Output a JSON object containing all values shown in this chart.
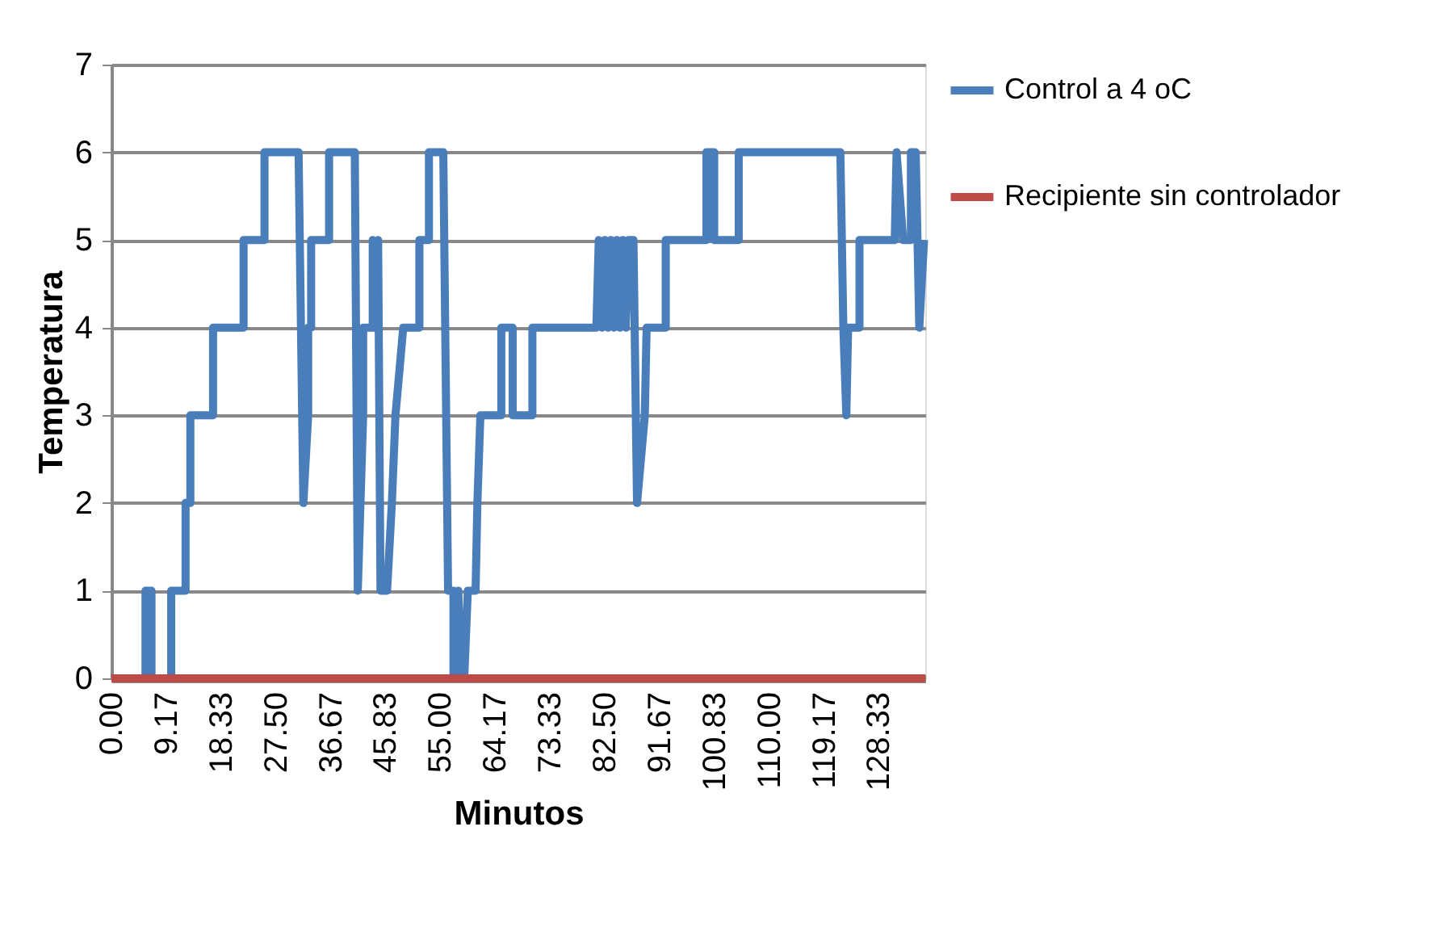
{
  "chart_data": {
    "type": "line",
    "xlabel": "Minutos",
    "ylabel": "Temperatura",
    "xlim": [
      0,
      136.1
    ],
    "ylim": [
      0,
      7
    ],
    "yticks": [
      0,
      1,
      2,
      3,
      4,
      5,
      6,
      7
    ],
    "xticks": [
      {
        "value": 0,
        "label": "0.00"
      },
      {
        "value": 9.17,
        "label": "9.17"
      },
      {
        "value": 18.33,
        "label": "18.33"
      },
      {
        "value": 27.5,
        "label": "27.50"
      },
      {
        "value": 36.67,
        "label": "36.67"
      },
      {
        "value": 45.83,
        "label": "45.83"
      },
      {
        "value": 55,
        "label": "55.00"
      },
      {
        "value": 64.17,
        "label": "64.17"
      },
      {
        "value": 73.33,
        "label": "73.33"
      },
      {
        "value": 82.5,
        "label": "82.50"
      },
      {
        "value": 91.67,
        "label": "91.67"
      },
      {
        "value": 100.83,
        "label": "100.83"
      },
      {
        "value": 110,
        "label": "110.00"
      },
      {
        "value": 119.17,
        "label": "119.17"
      },
      {
        "value": 128.33,
        "label": "128.33"
      }
    ],
    "grid": "y",
    "legend": "right",
    "marker": "none",
    "line_style": "solid",
    "series": [
      {
        "name": "Control a 4 oC",
        "color": "#4a7ebb",
        "x": [
          0,
          5.7,
          5.7,
          6.7,
          6.7,
          10.0,
          10.0,
          12.4,
          12.4,
          13.2,
          13.2,
          17.0,
          17.0,
          22.1,
          22.1,
          25.6,
          25.6,
          31.3,
          32.1,
          32.9,
          32.9,
          33.4,
          33.4,
          36.4,
          36.4,
          40.7,
          41.2,
          42.1,
          42.1,
          43.7,
          43.7,
          44.2,
          44.6,
          45.0,
          46.1,
          46.9,
          47.5,
          48.8,
          51.5,
          51.5,
          53.1,
          53.1,
          55.5,
          56.3,
          57.2,
          57.2,
          58.0,
          58.5,
          59.0,
          59.6,
          60.9,
          61.2,
          61.7,
          65.2,
          65.2,
          67.1,
          67.1,
          70.4,
          70.4,
          81.1,
          81.5,
          82.0,
          82.5,
          83.0,
          83.5,
          84.0,
          84.5,
          85.0,
          85.5,
          86.0,
          86.5,
          87.3,
          87.9,
          89.2,
          89.5,
          92.7,
          92.7,
          99.5,
          99.5,
          100.8,
          100.8,
          104.9,
          104.9,
          121.9,
          122.4,
          122.9,
          123.2,
          125.1,
          125.1,
          131.0,
          131.3,
          132.4,
          133.7,
          133.7,
          134.5,
          135.1,
          135.9
        ],
        "values": [
          0,
          0,
          1,
          1,
          0,
          0,
          1,
          1,
          2,
          2,
          3,
          3,
          4,
          4,
          5,
          5,
          6,
          6,
          2,
          3,
          4,
          4,
          5,
          5,
          6,
          6,
          1,
          3,
          4,
          4,
          5,
          4,
          5,
          1,
          1,
          2,
          3,
          4,
          4,
          5,
          5,
          6,
          6,
          1,
          1,
          0,
          1,
          0,
          0,
          1,
          1,
          2,
          3,
          3,
          4,
          4,
          3,
          3,
          4,
          4,
          5,
          4,
          5,
          4,
          5,
          4,
          5,
          4,
          5,
          4,
          5,
          5,
          2,
          3,
          4,
          4,
          5,
          5,
          6,
          6,
          5,
          5,
          6,
          6,
          4,
          3,
          4,
          4,
          5,
          5,
          6,
          5,
          5,
          6,
          6,
          4,
          5
        ]
      },
      {
        "name": "Recipiente sin controlador",
        "color": "#be4b48",
        "x": [
          0,
          136.1
        ],
        "values": [
          0,
          0
        ]
      }
    ]
  }
}
